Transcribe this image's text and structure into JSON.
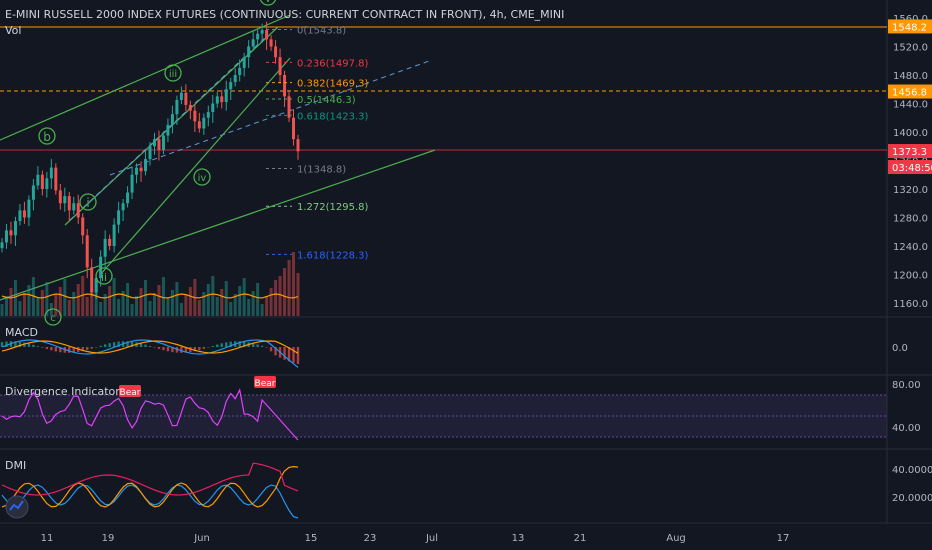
{
  "header": {
    "title": "E-MINI RUSSELL 2000 INDEX FUTURES (CONTINUOUS: CURRENT CONTRACT IN FRONT), 4h, CME_MINI",
    "vol_label": "Vol"
  },
  "price_axis": {
    "ticks": [
      "1560.0",
      "1520.0",
      "1480.0",
      "1440.0",
      "1400.0",
      "1360.0",
      "1320.0",
      "1280.0",
      "1240.0",
      "1200.0",
      "1160.0"
    ],
    "badges": [
      {
        "label": "1548.2",
        "value": 1548.2,
        "color": "#ff9800"
      },
      {
        "label": "1456.8",
        "value": 1456.8,
        "color": "#ff9800"
      },
      {
        "label": "1373.3",
        "value": 1373.3,
        "color": "#f23645"
      },
      {
        "label": "03:48:50",
        "value": 1358,
        "color": "#f23645"
      }
    ]
  },
  "fib_levels": [
    {
      "label": "0(1543.8)",
      "value": 1543.8,
      "color": "#787b86"
    },
    {
      "label": "0.236(1497.8)",
      "value": 1497.8,
      "color": "#f23645"
    },
    {
      "label": "0.382(1469.3)",
      "value": 1469.3,
      "color": "#ff9800"
    },
    {
      "label": "0.5(1446.3)",
      "value": 1446.3,
      "color": "#4caf50"
    },
    {
      "label": "0.618(1423.3)",
      "value": 1423.3,
      "color": "#089981"
    },
    {
      "label": "1(1348.8)",
      "value": 1348.8,
      "color": "#787b86"
    },
    {
      "label": "1.272(1295.8)",
      "value": 1295.8,
      "color": "#81c784"
    },
    {
      "label": "1.618(1228.3)",
      "value": 1228.3,
      "color": "#2962ff"
    }
  ],
  "wave_labels": [
    "b",
    "i",
    "ii",
    "iii",
    "iv",
    "v",
    "c"
  ],
  "macd": {
    "label": "MACD",
    "ticks": [
      "0.0"
    ]
  },
  "divergence": {
    "label": "Divergence Indicator",
    "ticks": [
      "80.00",
      "40.00"
    ],
    "signals": [
      "Bear",
      "Bear"
    ]
  },
  "dmi": {
    "label": "DMI",
    "ticks": [
      "40.0000",
      "20.0000"
    ]
  },
  "time_axis": {
    "labels": [
      "11",
      "19",
      "Jun",
      "15",
      "23",
      "Jul",
      "13",
      "21",
      "Aug",
      "17"
    ]
  },
  "chart_data": {
    "type": "candlestick",
    "title": "E-MINI RUSSELL 2000 INDEX FUTURES (CONTINUOUS: CURRENT CONTRACT IN FRONT), 4h, CME_MINI",
    "ylim": [
      1140,
      1570
    ],
    "closes": [
      1245,
      1262,
      1255,
      1275,
      1290,
      1280,
      1305,
      1325,
      1340,
      1320,
      1335,
      1350,
      1318,
      1300,
      1310,
      1290,
      1300,
      1280,
      1255,
      1210,
      1175,
      1195,
      1225,
      1250,
      1240,
      1270,
      1290,
      1300,
      1315,
      1340,
      1350,
      1345,
      1362,
      1380,
      1390,
      1375,
      1395,
      1410,
      1425,
      1445,
      1455,
      1438,
      1430,
      1415,
      1405,
      1420,
      1428,
      1440,
      1450,
      1442,
      1460,
      1470,
      1480,
      1490,
      1505,
      1520,
      1530,
      1538,
      1543,
      1530,
      1520,
      1505,
      1480,
      1450,
      1420,
      1390,
      1373
    ]
  }
}
